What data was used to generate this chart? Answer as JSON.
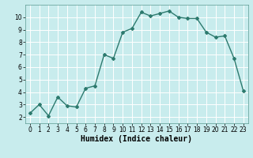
{
  "x": [
    0,
    1,
    2,
    3,
    4,
    5,
    6,
    7,
    8,
    9,
    10,
    11,
    12,
    13,
    14,
    15,
    16,
    17,
    18,
    19,
    20,
    21,
    22,
    23
  ],
  "y": [
    2.3,
    3.0,
    2.1,
    3.6,
    2.9,
    2.8,
    4.3,
    4.5,
    7.0,
    6.7,
    8.8,
    9.1,
    10.4,
    10.1,
    10.3,
    10.5,
    10.0,
    9.9,
    9.9,
    8.8,
    8.4,
    8.5,
    6.7,
    4.1
  ],
  "line_color": "#2d7a6e",
  "marker": "D",
  "marker_size": 2,
  "bg_color": "#c8eced",
  "grid_color": "#ffffff",
  "xlabel": "Humidex (Indice chaleur)",
  "xlim": [
    -0.5,
    23.5
  ],
  "ylim": [
    1.5,
    11
  ],
  "yticks": [
    2,
    3,
    4,
    5,
    6,
    7,
    8,
    9,
    10
  ],
  "xticks": [
    0,
    1,
    2,
    3,
    4,
    5,
    6,
    7,
    8,
    9,
    10,
    11,
    12,
    13,
    14,
    15,
    16,
    17,
    18,
    19,
    20,
    21,
    22,
    23
  ],
  "tick_fontsize": 5.5,
  "xlabel_fontsize": 7,
  "line_width": 1.0
}
